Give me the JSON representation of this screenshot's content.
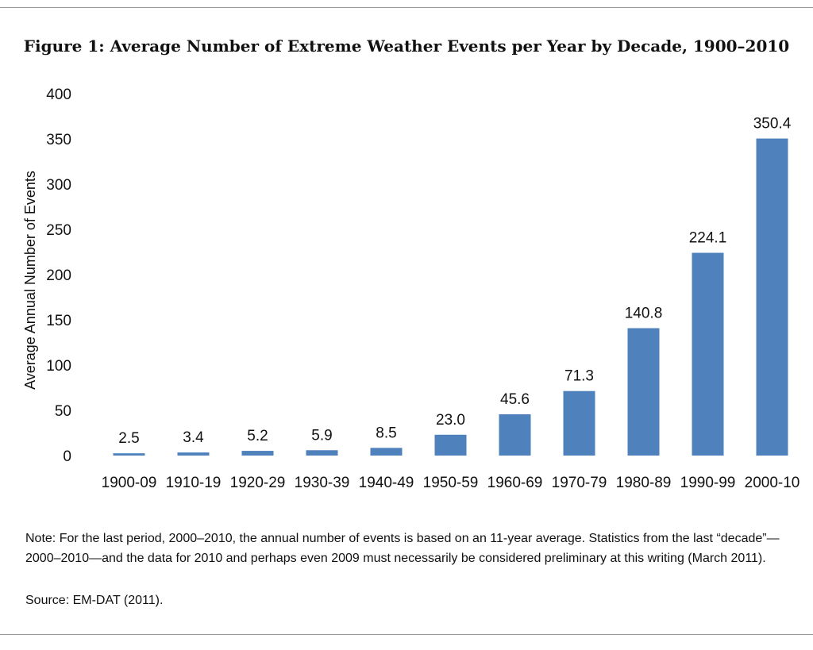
{
  "figure_title": "Figure 1: Average Number of Extreme Weather Events per Year by Decade, 1900–2010",
  "note": "Note: For the last period, 2000–2010, the annual number of events is based on an 11-year average. Statistics from the last “decade”—2000–2010—and the data for 2010 and perhaps even 2009 must necessarily be considered preliminary at this writing (March 2011).",
  "source": "Source: EM-DAT (2011).",
  "chart_data": {
    "type": "bar",
    "title": "Figure 1: Average Number of Extreme Weather Events per Year by Decade, 1900–2010",
    "xlabel": "",
    "ylabel": "Average Annual Number of Events",
    "categories": [
      "1900-09",
      "1910-19",
      "1920-29",
      "1930-39",
      "1940-49",
      "1950-59",
      "1960-69",
      "1970-79",
      "1980-89",
      "1990-99",
      "2000-10"
    ],
    "values": [
      2.5,
      3.4,
      5.2,
      5.9,
      8.5,
      23.0,
      45.6,
      71.3,
      140.8,
      224.1,
      350.4
    ],
    "data_labels": [
      "2.5",
      "3.4",
      "5.2",
      "5.9",
      "8.5",
      "23.0",
      "45.6",
      "71.3",
      "140.8",
      "224.1",
      "350.4"
    ],
    "ylim": [
      0,
      400
    ],
    "yticks": [
      0,
      50,
      100,
      150,
      200,
      250,
      300,
      350,
      400
    ],
    "grid": false,
    "legend": "none",
    "bar_color": "#4f81bd"
  }
}
